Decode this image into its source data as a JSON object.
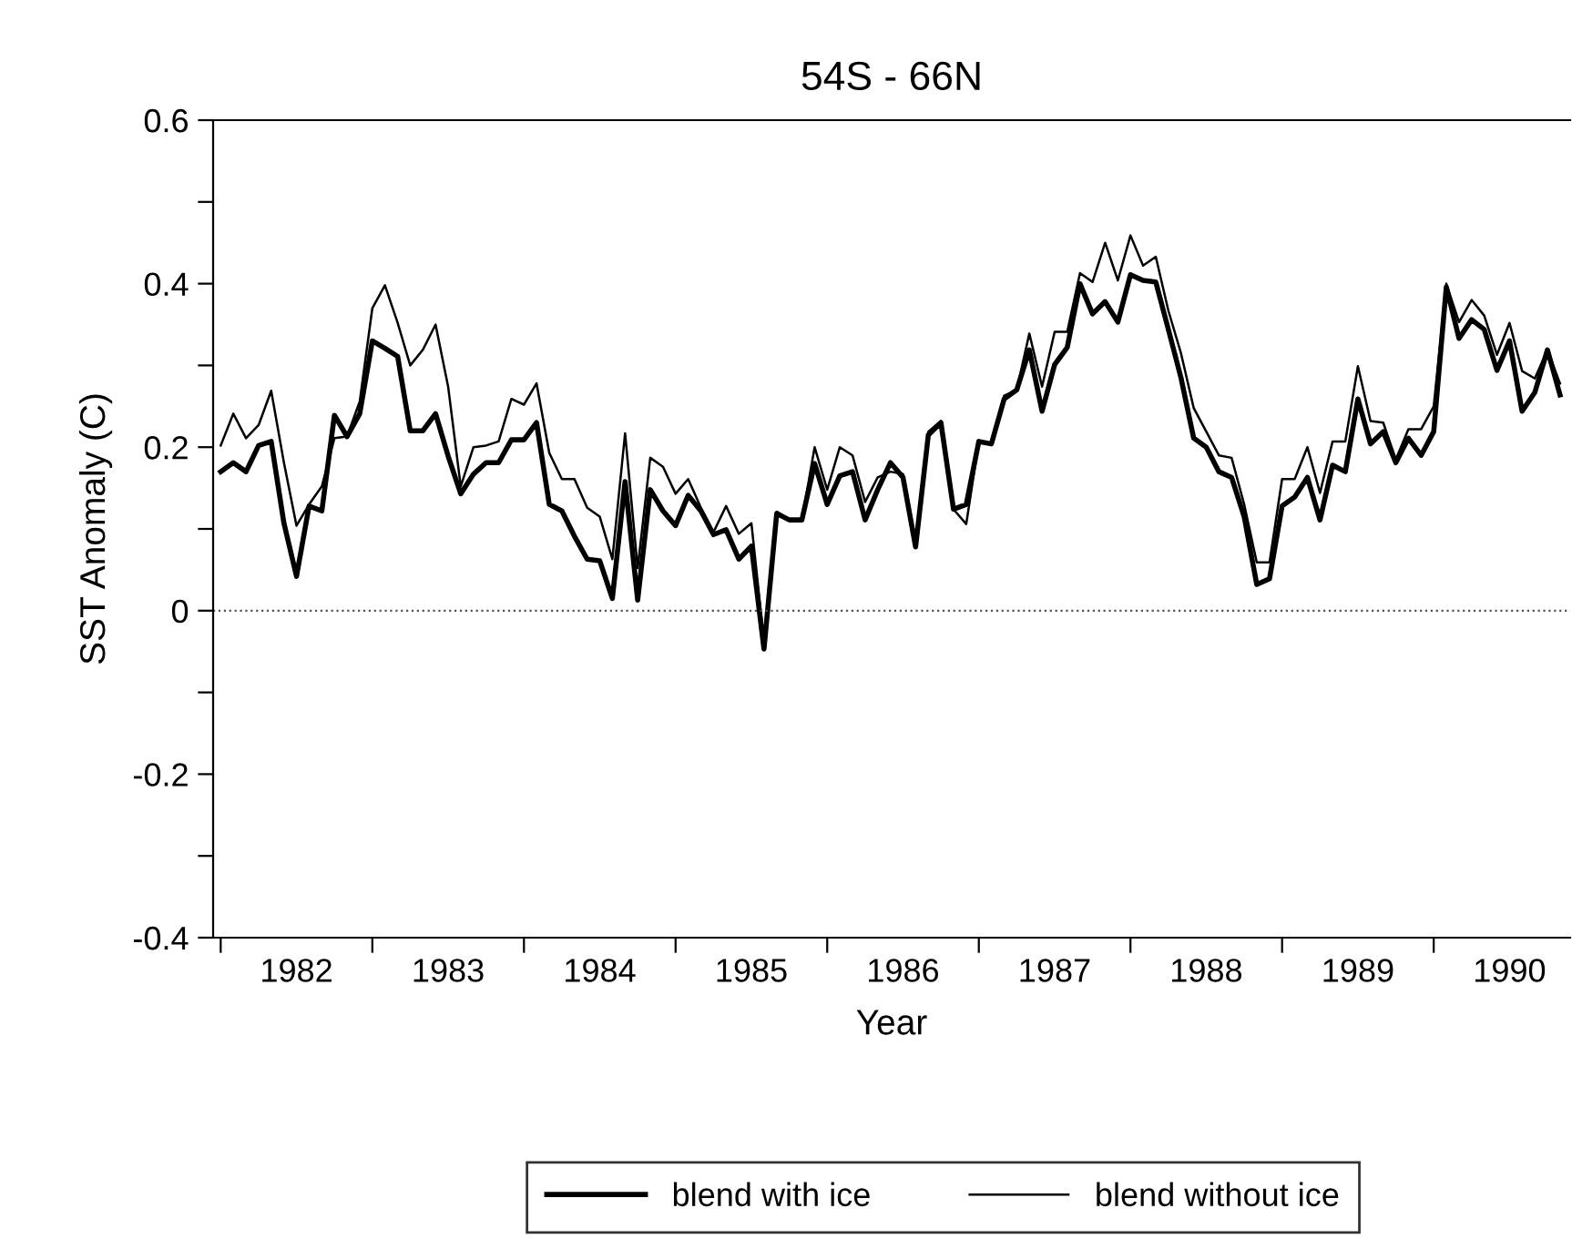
{
  "chart_data": {
    "type": "line",
    "title": "54S - 66N",
    "xlabel": "Year",
    "ylabel": "SST Anomaly (C)",
    "x": [
      1982,
      1982.083,
      1982.167,
      1982.25,
      1982.333,
      1982.417,
      1982.5,
      1982.583,
      1982.667,
      1982.75,
      1982.833,
      1982.917,
      1983,
      1983.083,
      1983.167,
      1983.25,
      1983.333,
      1983.417,
      1983.5,
      1983.583,
      1983.667,
      1983.75,
      1983.833,
      1983.917,
      1984,
      1984.083,
      1984.167,
      1984.25,
      1984.333,
      1984.417,
      1984.5,
      1984.583,
      1984.667,
      1984.75,
      1984.833,
      1984.917,
      1985,
      1985.083,
      1985.167,
      1985.25,
      1985.333,
      1985.417,
      1985.5,
      1985.583,
      1985.667,
      1985.75,
      1985.833,
      1985.917,
      1986,
      1986.083,
      1986.167,
      1986.25,
      1986.333,
      1986.417,
      1986.5,
      1986.583,
      1986.667,
      1986.75,
      1986.833,
      1986.917,
      1987,
      1987.083,
      1987.167,
      1987.25,
      1987.333,
      1987.417,
      1987.5,
      1987.583,
      1987.667,
      1987.75,
      1987.833,
      1987.917,
      1988,
      1988.083,
      1988.167,
      1988.25,
      1988.333,
      1988.417,
      1988.5,
      1988.583,
      1988.667,
      1988.75,
      1988.833,
      1988.917,
      1989,
      1989.083,
      1989.167,
      1989.25,
      1989.333,
      1989.417,
      1989.5,
      1989.583,
      1989.667,
      1989.75,
      1989.833,
      1989.917,
      1990,
      1990.083,
      1990.167,
      1990.25,
      1990.333,
      1990.417,
      1990.5,
      1990.583,
      1990.667,
      1990.75,
      1990.833
    ],
    "series": [
      {
        "name": "blend with ice",
        "color": "#000000",
        "values": [
          0.17,
          0.181,
          0.17,
          0.202,
          0.207,
          0.107,
          0.042,
          0.128,
          0.122,
          0.239,
          0.213,
          0.241,
          0.33,
          0.321,
          0.311,
          0.22,
          0.22,
          0.241,
          0.189,
          0.143,
          0.167,
          0.181,
          0.181,
          0.209,
          0.209,
          0.23,
          0.13,
          0.122,
          0.091,
          0.063,
          0.061,
          0.015,
          0.158,
          0.013,
          0.148,
          0.122,
          0.104,
          0.141,
          0.122,
          0.093,
          0.099,
          0.063,
          0.079,
          -0.047,
          0.119,
          0.111,
          0.111,
          0.18,
          0.13,
          0.165,
          0.17,
          0.111,
          0.148,
          0.181,
          0.163,
          0.078,
          0.215,
          0.23,
          0.124,
          0.13,
          0.207,
          0.204,
          0.259,
          0.27,
          0.319,
          0.244,
          0.301,
          0.322,
          0.4,
          0.363,
          0.378,
          0.353,
          0.411,
          0.404,
          0.402,
          0.344,
          0.285,
          0.211,
          0.2,
          0.17,
          0.163,
          0.115,
          0.032,
          0.039,
          0.128,
          0.139,
          0.163,
          0.111,
          0.178,
          0.17,
          0.259,
          0.204,
          0.219,
          0.181,
          0.211,
          0.19,
          0.219,
          0.396,
          0.333,
          0.356,
          0.344,
          0.294,
          0.33,
          0.244,
          0.267,
          0.319,
          0.264
        ]
      },
      {
        "name": "blend without ice",
        "color": "#000000",
        "values": [
          0.202,
          0.241,
          0.211,
          0.227,
          0.269,
          0.181,
          0.104,
          0.13,
          0.152,
          0.211,
          0.213,
          0.256,
          0.37,
          0.398,
          0.352,
          0.3,
          0.319,
          0.35,
          0.274,
          0.152,
          0.2,
          0.202,
          0.207,
          0.259,
          0.252,
          0.278,
          0.193,
          0.161,
          0.161,
          0.126,
          0.115,
          0.063,
          0.217,
          0.052,
          0.187,
          0.176,
          0.143,
          0.161,
          0.126,
          0.096,
          0.128,
          0.094,
          0.107,
          -0.037,
          0.121,
          0.111,
          0.111,
          0.2,
          0.148,
          0.2,
          0.19,
          0.133,
          0.163,
          0.17,
          0.167,
          0.085,
          0.219,
          0.232,
          0.124,
          0.106,
          0.207,
          0.204,
          0.263,
          0.27,
          0.339,
          0.274,
          0.341,
          0.341,
          0.413,
          0.402,
          0.45,
          0.404,
          0.459,
          0.422,
          0.433,
          0.367,
          0.315,
          0.248,
          0.219,
          0.19,
          0.187,
          0.13,
          0.059,
          0.059,
          0.161,
          0.161,
          0.2,
          0.144,
          0.207,
          0.207,
          0.299,
          0.232,
          0.23,
          0.185,
          0.222,
          0.222,
          0.25,
          0.4,
          0.353,
          0.38,
          0.361,
          0.313,
          0.352,
          0.293,
          0.284,
          0.319,
          0.278
        ]
      }
    ],
    "xlim": [
      1981.95,
      1990.9
    ],
    "xticks": [
      {
        "value": 1982,
        "label": null
      },
      {
        "value": 1982.5,
        "label": "1982"
      },
      {
        "value": 1983,
        "label": null
      },
      {
        "value": 1983.5,
        "label": "1983"
      },
      {
        "value": 1984,
        "label": null
      },
      {
        "value": 1984.5,
        "label": "1984"
      },
      {
        "value": 1985,
        "label": null
      },
      {
        "value": 1985.5,
        "label": "1985"
      },
      {
        "value": 1986,
        "label": null
      },
      {
        "value": 1986.5,
        "label": "1986"
      },
      {
        "value": 1987,
        "label": null
      },
      {
        "value": 1987.5,
        "label": "1987"
      },
      {
        "value": 1988,
        "label": null
      },
      {
        "value": 1988.5,
        "label": "1988"
      },
      {
        "value": 1989,
        "label": null
      },
      {
        "value": 1989.5,
        "label": "1989"
      },
      {
        "value": 1990,
        "label": null
      },
      {
        "value": 1990.5,
        "label": "1990"
      }
    ],
    "ylim": [
      -0.4,
      0.6
    ],
    "yticks": [
      -0.4,
      {
        "value": -0.3,
        "label": null
      },
      -0.2,
      {
        "value": -0.1,
        "label": null
      },
      0,
      {
        "value": 0.1,
        "label": null
      },
      0.2,
      {
        "value": 0.3,
        "label": null
      },
      0.4,
      {
        "value": 0.5,
        "label": null
      },
      0.6
    ],
    "ref_lines": [
      {
        "axis": "y",
        "value": 0,
        "line_style": "dotted",
        "color": "#555555"
      }
    ],
    "grid": false,
    "legend": "bottom",
    "marker": "none",
    "line_style": "solid"
  }
}
